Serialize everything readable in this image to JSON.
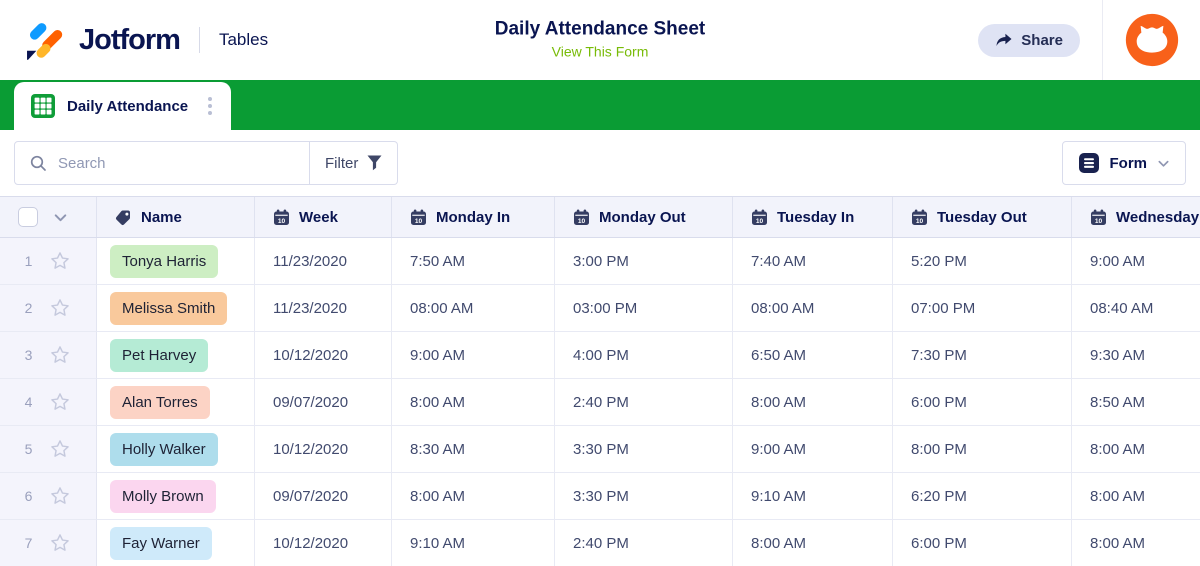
{
  "header": {
    "brand": "Jotform",
    "product": "Tables",
    "title": "Daily Attendance Sheet",
    "view_form_link": "View This Form",
    "share_label": "Share"
  },
  "tab": {
    "label": "Daily Attendance"
  },
  "toolbar": {
    "search_placeholder": "Search",
    "filter_label": "Filter",
    "form_label": "Form"
  },
  "table": {
    "columns": [
      {
        "key": "name",
        "label": "Name",
        "icon": "tag-icon"
      },
      {
        "key": "week",
        "label": "Week",
        "icon": "calendar-icon"
      },
      {
        "key": "monday_in",
        "label": "Monday In",
        "icon": "calendar-icon"
      },
      {
        "key": "monday_out",
        "label": "Monday Out",
        "icon": "calendar-icon"
      },
      {
        "key": "tuesday_in",
        "label": "Tuesday In",
        "icon": "calendar-icon"
      },
      {
        "key": "tuesday_out",
        "label": "Tuesday Out",
        "icon": "calendar-icon"
      },
      {
        "key": "wednesday",
        "label": "Wednesday",
        "icon": "calendar-icon"
      }
    ],
    "rows": [
      {
        "num": "1",
        "name": "Tonya Harris",
        "name_bg": "#cdeec3",
        "week": "11/23/2020",
        "monday_in": "7:50 AM",
        "monday_out": "3:00 PM",
        "tuesday_in": "7:40 AM",
        "tuesday_out": "5:20 PM",
        "wednesday": "9:00 AM"
      },
      {
        "num": "2",
        "name": "Melissa Smith",
        "name_bg": "#f9c99c",
        "week": "11/23/2020",
        "monday_in": "08:00 AM",
        "monday_out": "03:00 PM",
        "tuesday_in": "08:00 AM",
        "tuesday_out": "07:00 PM",
        "wednesday": "08:40 AM"
      },
      {
        "num": "3",
        "name": "Pet Harvey",
        "name_bg": "#b5ebd5",
        "week": "10/12/2020",
        "monday_in": "9:00 AM",
        "monday_out": "4:00 PM",
        "tuesday_in": "6:50 AM",
        "tuesday_out": "7:30 PM",
        "wednesday": "9:30 AM"
      },
      {
        "num": "4",
        "name": "Alan Torres",
        "name_bg": "#fcd3c5",
        "week": "09/07/2020",
        "monday_in": "8:00 AM",
        "monday_out": "2:40 PM",
        "tuesday_in": "8:00 AM",
        "tuesday_out": "6:00 PM",
        "wednesday": "8:50 AM"
      },
      {
        "num": "5",
        "name": "Holly Walker",
        "name_bg": "#aeddec",
        "week": "10/12/2020",
        "monday_in": "8:30 AM",
        "monday_out": "3:30 PM",
        "tuesday_in": "9:00 AM",
        "tuesday_out": "8:00 PM",
        "wednesday": "8:00 AM"
      },
      {
        "num": "6",
        "name": "Molly Brown",
        "name_bg": "#fbd6ef",
        "week": "09/07/2020",
        "monday_in": "8:00 AM",
        "monday_out": "3:30 PM",
        "tuesday_in": "9:10 AM",
        "tuesday_out": "6:20 PM",
        "wednesday": "8:00 AM"
      },
      {
        "num": "7",
        "name": "Fay Warner",
        "name_bg": "#cfeafa",
        "week": "10/12/2020",
        "monday_in": "9:10 AM",
        "monday_out": "2:40 PM",
        "tuesday_in": "8:00 AM",
        "tuesday_out": "6:00 PM",
        "wednesday": "8:00 AM"
      }
    ]
  },
  "colors": {
    "navy": "#0a1551",
    "green_bar": "#0a9c34",
    "link_green": "#78bb07",
    "avatar_orange": "#f8611a",
    "tab_icon_green": "#0f9d38"
  }
}
